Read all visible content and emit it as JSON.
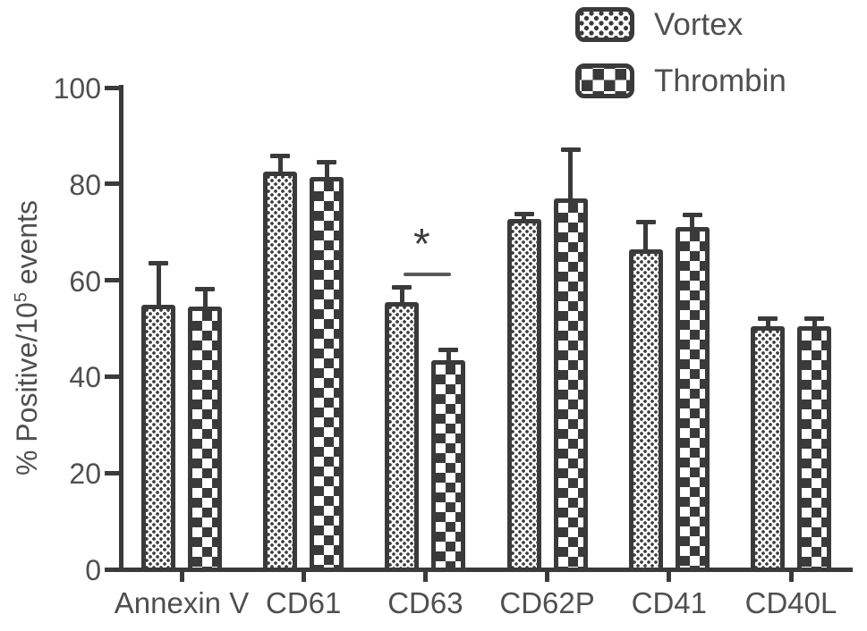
{
  "chart_data": {
    "type": "bar",
    "title": "",
    "categories": [
      "Annexin V",
      "CD61",
      "CD63",
      "CD62P",
      "CD41",
      "CD40L"
    ],
    "series": [
      {
        "name": "Vortex",
        "pattern": "dots",
        "values": [
          55,
          82.5,
          55.5,
          72.8,
          66.5,
          50.5
        ],
        "errors": [
          8.5,
          3.2,
          3,
          0.8,
          5.5,
          1.5
        ]
      },
      {
        "name": "Thrombin",
        "pattern": "checker",
        "values": [
          54.5,
          81.5,
          43.5,
          77,
          71,
          50.5
        ],
        "errors": [
          3.5,
          3,
          2,
          10,
          2.5,
          1.5
        ]
      }
    ],
    "xlabel": "",
    "ylabel": "% Positive/10⁵ events",
    "ylabel_parts": {
      "prefix": "% Positive/10",
      "sup": "5",
      "suffix": " events"
    },
    "yticks": [
      0,
      20,
      40,
      60,
      80,
      100
    ],
    "ylim": [
      0,
      100
    ],
    "grid": false,
    "error_bars": true,
    "legend_position": "top-right",
    "annotation": {
      "text": "*",
      "category": "CD63"
    },
    "ink_color": "#3a3a3a",
    "text_color": "#4f4f4f"
  }
}
